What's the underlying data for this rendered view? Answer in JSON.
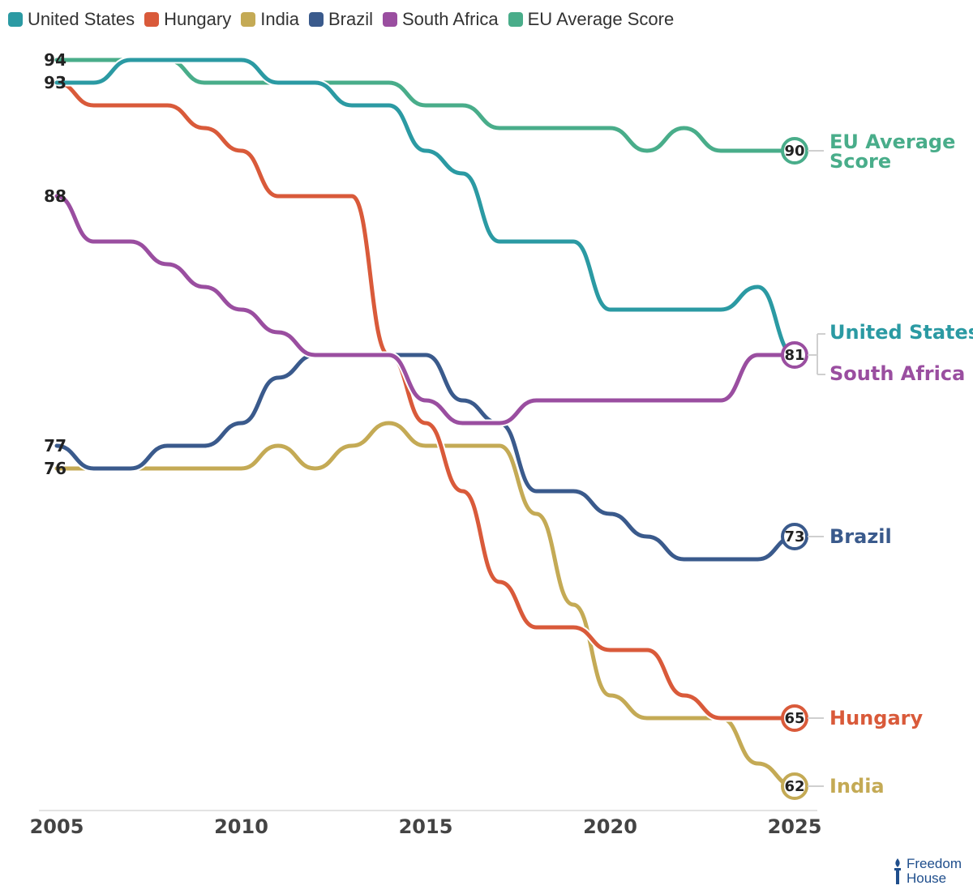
{
  "chart_data": {
    "type": "line",
    "title": "",
    "xlabel": "",
    "ylabel": "",
    "x": [
      2005,
      2006,
      2007,
      2008,
      2009,
      2010,
      2011,
      2012,
      2013,
      2014,
      2015,
      2016,
      2017,
      2018,
      2019,
      2020,
      2021,
      2022,
      2023,
      2024,
      2025
    ],
    "xlim": [
      2005,
      2025
    ],
    "ylim": [
      60.5,
      94
    ],
    "x_ticks": [
      "2005",
      "2010",
      "2015",
      "2020",
      "2025"
    ],
    "series": [
      {
        "name": "United States",
        "label": "United States",
        "color": "#2b9aa3",
        "values": [
          93,
          93,
          94,
          94,
          94,
          94,
          93,
          93,
          92,
          92,
          90,
          89,
          86,
          86,
          86,
          83,
          83,
          83,
          83,
          84,
          81
        ]
      },
      {
        "name": "Hungary",
        "label": "Hungary",
        "color": "#d95a3a",
        "values": [
          93,
          92,
          92,
          92,
          91,
          90,
          88,
          88,
          88,
          81,
          78,
          75,
          71,
          69,
          69,
          68,
          68,
          66,
          65,
          65,
          65
        ]
      },
      {
        "name": "India",
        "label": "India",
        "color": "#c4aa55",
        "values": [
          76,
          76,
          76,
          76,
          76,
          76,
          77,
          76,
          77,
          78,
          77,
          77,
          77,
          74,
          70,
          66,
          65,
          65,
          65,
          63,
          62
        ]
      },
      {
        "name": "Brazil",
        "label": "Brazil",
        "color": "#3a5a8c",
        "values": [
          77,
          76,
          76,
          77,
          77,
          78,
          80,
          81,
          81,
          81,
          81,
          79,
          78,
          75,
          75,
          74,
          73,
          72,
          72,
          72,
          73
        ]
      },
      {
        "name": "South Africa",
        "label": "South Africa",
        "color": "#9a4ea0",
        "values": [
          88,
          86,
          86,
          85,
          84,
          83,
          82,
          81,
          81,
          81,
          79,
          78,
          78,
          79,
          79,
          79,
          79,
          79,
          79,
          81,
          81
        ]
      },
      {
        "name": "EU Average Score",
        "label": "EU Average Score",
        "color": "#49ad8a",
        "label_lines": [
          "EU Average",
          "Score"
        ],
        "values": [
          94,
          94,
          94,
          94,
          93,
          93,
          93,
          93,
          93,
          93,
          92,
          92,
          91,
          91,
          91,
          91,
          90,
          91,
          90,
          90,
          90
        ]
      }
    ],
    "start_labels": [
      "94",
      "93",
      "88",
      "77",
      "76"
    ],
    "end_values": [
      "90",
      "81",
      "73",
      "65",
      "62"
    ],
    "legend_position": "top-left",
    "grid": false
  },
  "logo": {
    "line1": "Freedom",
    "line2": "House"
  }
}
